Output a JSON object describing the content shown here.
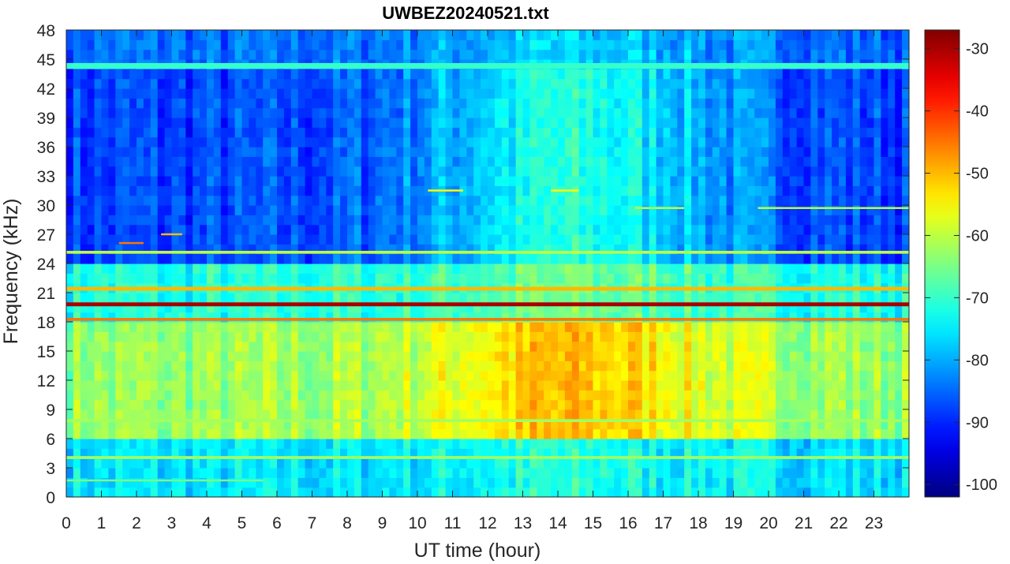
{
  "chart_data": {
    "type": "heatmap",
    "title": "UWBEZ20240521.txt",
    "xlabel": "UT time (hour)",
    "ylabel": "Frequency (kHz)",
    "xlim": [
      0,
      24
    ],
    "ylim": [
      0,
      48
    ],
    "xticks": [
      "0",
      "1",
      "2",
      "3",
      "4",
      "5",
      "6",
      "7",
      "8",
      "9",
      "10",
      "11",
      "12",
      "13",
      "14",
      "15",
      "16",
      "17",
      "18",
      "19",
      "20",
      "21",
      "22",
      "23"
    ],
    "yticks": [
      "0",
      "3",
      "6",
      "9",
      "12",
      "15",
      "18",
      "21",
      "24",
      "27",
      "30",
      "33",
      "36",
      "39",
      "42",
      "45",
      "48"
    ],
    "colorbar": {
      "colormap": "jet",
      "clim": [
        -102,
        -27
      ],
      "ticks": [
        "-30",
        "-40",
        "-50",
        "-60",
        "-70",
        "-80",
        "-90",
        "-100"
      ]
    },
    "bands": [
      {
        "freq_khz": [
          44.0,
          44.6
        ],
        "level_db": -70,
        "hours": [
          0,
          24
        ]
      },
      {
        "freq_khz": [
          19.6,
          20.0
        ],
        "level_db": -30,
        "hours": [
          0,
          24
        ]
      },
      {
        "freq_khz": [
          18.1,
          18.4
        ],
        "level_db": -45,
        "hours": [
          0,
          24
        ]
      },
      {
        "freq_khz": [
          21.2,
          21.6
        ],
        "level_db": -50,
        "hours": [
          0,
          24
        ]
      },
      {
        "freq_khz": [
          25.0,
          25.3
        ],
        "level_db": -60,
        "hours": [
          0,
          24
        ]
      },
      {
        "freq_khz": [
          26.0,
          26.2
        ],
        "level_db": -45,
        "hours": [
          1.5,
          2.2
        ]
      },
      {
        "freq_khz": [
          26.9,
          27.1
        ],
        "level_db": -50,
        "hours": [
          2.7,
          3.3
        ]
      },
      {
        "freq_khz": [
          31.4,
          31.6
        ],
        "level_db": -55,
        "hours": [
          10.3,
          11.3
        ]
      },
      {
        "freq_khz": [
          31.4,
          31.6
        ],
        "level_db": -55,
        "hours": [
          13.8,
          14.6
        ]
      },
      {
        "freq_khz": [
          29.6,
          29.8
        ],
        "level_db": -60,
        "hours": [
          16.2,
          17.6
        ]
      },
      {
        "freq_khz": [
          29.6,
          29.8
        ],
        "level_db": -60,
        "hours": [
          19.7,
          24
        ]
      },
      {
        "freq_khz": [
          7.7,
          8.0
        ],
        "level_db": -62,
        "hours": [
          0,
          24
        ]
      },
      {
        "freq_khz": [
          3.9,
          4.2
        ],
        "level_db": -62,
        "hours": [
          0,
          24
        ]
      },
      {
        "freq_khz": [
          1.6,
          1.8
        ],
        "level_db": -65,
        "hours": [
          0,
          5.6
        ]
      }
    ]
  }
}
